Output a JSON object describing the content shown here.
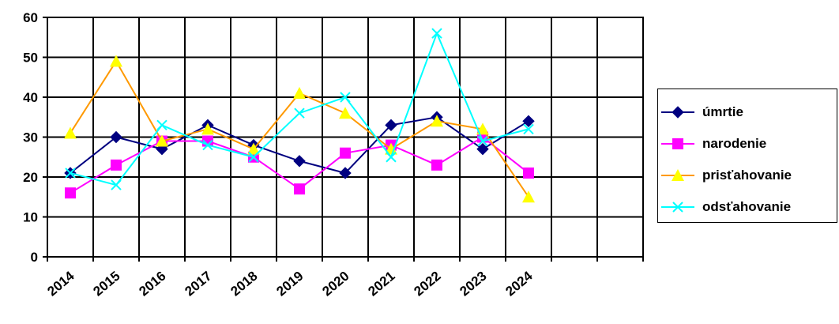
{
  "chart_data": {
    "type": "line",
    "categories": [
      "2014",
      "2015",
      "2016",
      "2017",
      "2018",
      "2019",
      "2020",
      "2021",
      "2022",
      "2023",
      "2024"
    ],
    "ylim": [
      0,
      60
    ],
    "yticks": [
      "0",
      "10",
      "20",
      "30",
      "40",
      "50",
      "60"
    ],
    "grid": true,
    "legend_position": "right",
    "series": [
      {
        "name": "úmrtie",
        "color": "#000080",
        "marker": "diamond",
        "values": [
          21,
          30,
          27,
          33,
          28,
          24,
          21,
          33,
          35,
          27,
          34
        ]
      },
      {
        "name": "narodenie",
        "color": "#ff00ff",
        "marker": "square",
        "values": [
          16,
          23,
          29,
          29,
          25,
          17,
          26,
          28,
          23,
          30,
          21
        ]
      },
      {
        "name": "prisťahovanie",
        "color": "#ff9900",
        "marker_color": "#ffff00",
        "marker": "triangle",
        "values": [
          31,
          49,
          29,
          32,
          27,
          41,
          36,
          27,
          34,
          32,
          15
        ]
      },
      {
        "name": "odsťahovanie",
        "color": "#00ffff",
        "marker": "x",
        "values": [
          21,
          18,
          33,
          28,
          25,
          36,
          40,
          25,
          56,
          29,
          32
        ]
      }
    ]
  }
}
